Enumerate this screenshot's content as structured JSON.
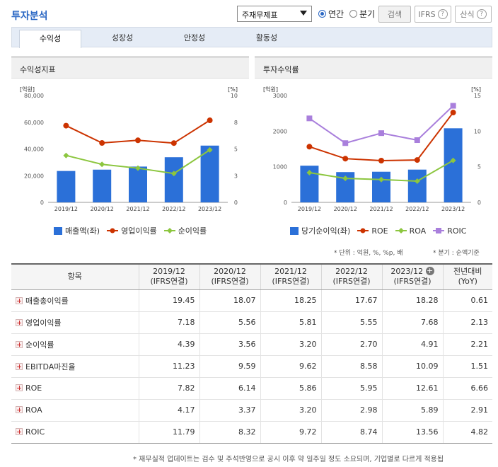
{
  "header": {
    "title": "투자분석",
    "select_value": "주재무제표",
    "radio_annual": "연간",
    "radio_quarter": "분기",
    "btn_search": "검색",
    "btn_ifrs": "IFRS",
    "btn_calc": "산식",
    "help_glyph": "?"
  },
  "tabs": [
    {
      "label": "수익성",
      "active": true
    },
    {
      "label": "성장성",
      "active": false
    },
    {
      "label": "안정성",
      "active": false
    },
    {
      "label": "활동성",
      "active": false
    }
  ],
  "left_panel": {
    "title": "수익성지표",
    "legend": [
      "매출액(좌)",
      "영업이익률",
      "순이익률"
    ]
  },
  "right_panel": {
    "title": "투자수익률",
    "legend": [
      "당기순이익(좌)",
      "ROE",
      "ROA",
      "ROIC"
    ]
  },
  "chart_data": [
    {
      "type": "bar+line",
      "ylabel_left": "[억원]",
      "ylabel_right": "[%]",
      "categories": [
        "2019/12",
        "2020/12",
        "2021/12",
        "2022/12",
        "2023/12"
      ],
      "y_left": {
        "lim": [
          0,
          80000
        ],
        "ticks": [
          "80,000",
          "60,000",
          "40,000",
          "20,000",
          "0"
        ]
      },
      "y_right": {
        "lim": [
          0,
          10
        ],
        "ticks": [
          "10",
          "8",
          "5",
          "3",
          "0"
        ]
      },
      "series": [
        {
          "name": "매출액(좌)",
          "type": "bar",
          "axis": "left",
          "color": "#2b70d8",
          "values": [
            23500,
            24500,
            26800,
            33800,
            42500
          ]
        },
        {
          "name": "영업이익률",
          "type": "line",
          "axis": "right",
          "color": "#cc3300",
          "values": [
            7.18,
            5.56,
            5.81,
            5.55,
            7.68
          ]
        },
        {
          "name": "순이익률",
          "type": "line",
          "axis": "right",
          "color": "#8cc63f",
          "values": [
            4.39,
            3.56,
            3.2,
            2.7,
            4.91
          ]
        }
      ]
    },
    {
      "type": "bar+line",
      "ylabel_left": "[억원]",
      "ylabel_right": "[%]",
      "categories": [
        "2019/12",
        "2020/12",
        "2021/12",
        "2022/12",
        "2023/12"
      ],
      "y_left": {
        "lim": [
          0,
          3000
        ],
        "ticks": [
          "3000",
          "2000",
          "1000",
          "0"
        ]
      },
      "y_right": {
        "lim": [
          0,
          15
        ],
        "ticks": [
          "15",
          "10",
          "5",
          "0"
        ]
      },
      "series": [
        {
          "name": "당기순이익(좌)",
          "type": "bar",
          "axis": "left",
          "color": "#2b70d8",
          "values": [
            1030,
            850,
            860,
            920,
            2080
          ]
        },
        {
          "name": "ROE",
          "type": "line",
          "axis": "right",
          "color": "#cc3300",
          "values": [
            7.82,
            6.14,
            5.86,
            5.95,
            12.61
          ]
        },
        {
          "name": "ROA",
          "type": "line",
          "axis": "right",
          "color": "#8cc63f",
          "values": [
            4.17,
            3.37,
            3.2,
            2.98,
            5.89
          ]
        },
        {
          "name": "ROIC",
          "type": "line",
          "axis": "right",
          "color": "#a97fdc",
          "values": [
            11.79,
            8.32,
            9.72,
            8.74,
            13.56
          ]
        }
      ]
    }
  ],
  "notes": {
    "unit": "* 단위 : 억원, %, %p, 배",
    "quarter": "* 분기 : 순액기준",
    "bottom": "* 재무실적 업데이트는 검수 및 주석반영으로 공시 이후 약 일주일 정도 소요되며, 기업별로 다르게 적용됩"
  },
  "table": {
    "headers": [
      {
        "l1": "항목",
        "l2": ""
      },
      {
        "l1": "2019/12",
        "l2": "(IFRS연결)"
      },
      {
        "l1": "2020/12",
        "l2": "(IFRS연결)"
      },
      {
        "l1": "2021/12",
        "l2": "(IFRS연결)"
      },
      {
        "l1": "2022/12",
        "l2": "(IFRS연결)"
      },
      {
        "l1": "2023/12",
        "l2": "(IFRS연결)"
      },
      {
        "l1": "전년대비",
        "l2": "(YoY)"
      }
    ],
    "add_glyph": "+",
    "rows": [
      {
        "label": "매출총이익률",
        "values": [
          "19.45",
          "18.07",
          "18.25",
          "17.67",
          "18.28",
          "0.61"
        ]
      },
      {
        "label": "영업이익률",
        "values": [
          "7.18",
          "5.56",
          "5.81",
          "5.55",
          "7.68",
          "2.13"
        ]
      },
      {
        "label": "순이익률",
        "values": [
          "4.39",
          "3.56",
          "3.20",
          "2.70",
          "4.91",
          "2.21"
        ]
      },
      {
        "label": "EBITDA마진율",
        "values": [
          "11.23",
          "9.59",
          "9.62",
          "8.58",
          "10.09",
          "1.51"
        ]
      },
      {
        "label": "ROE",
        "values": [
          "7.82",
          "6.14",
          "5.86",
          "5.95",
          "12.61",
          "6.66"
        ]
      },
      {
        "label": "ROA",
        "values": [
          "4.17",
          "3.37",
          "3.20",
          "2.98",
          "5.89",
          "2.91"
        ]
      },
      {
        "label": "ROIC",
        "values": [
          "11.79",
          "8.32",
          "9.72",
          "8.74",
          "13.56",
          "4.82"
        ]
      }
    ]
  }
}
